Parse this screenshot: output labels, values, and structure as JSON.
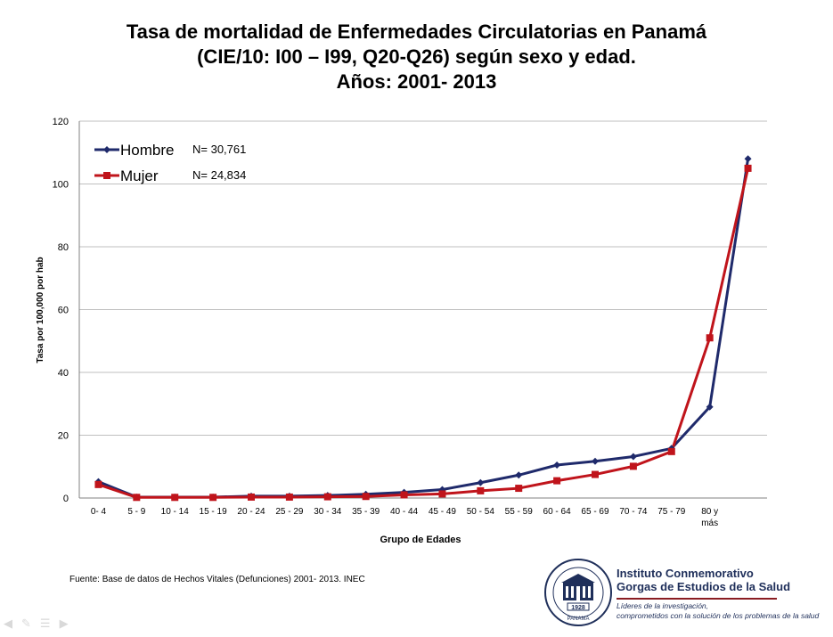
{
  "title": {
    "line1": "Tasa de mortalidad de Enfermedades Circulatorias en Panamá",
    "line2": "(CIE/10: I00 – I99, Q20-Q26) según sexo y edad.",
    "line3": "Años: 2001- 2013"
  },
  "chart_data": {
    "type": "line",
    "xlabel": "Grupo de Edades",
    "ylabel": "Tasa por 100,000 por hab",
    "ylim": [
      0,
      120
    ],
    "yticks": [
      0,
      20,
      40,
      60,
      80,
      100,
      120
    ],
    "grid": true,
    "legend_position": "top-left",
    "categories": [
      "0- 4",
      "5 - 9",
      "10 - 14",
      "15 - 19",
      "20 - 24",
      "25 - 29",
      "30 - 34",
      "35 - 39",
      "40 - 44",
      "45 - 49",
      "50 - 54",
      "55 - 59",
      "60 - 64",
      "65 - 69",
      "70 - 74",
      "75 - 79",
      "80 y más",
      ""
    ],
    "series": [
      {
        "name": "Hombre",
        "n_label": "N= 30,761",
        "color": "#1f2a6b",
        "marker": "diamond",
        "values": [
          5.2,
          0.3,
          0.3,
          0.3,
          0.6,
          0.6,
          0.8,
          1.2,
          1.8,
          2.7,
          4.9,
          7.3,
          10.5,
          11.7,
          13.2,
          15.8,
          29,
          108
        ]
      },
      {
        "name": "Mujer",
        "n_label": "N= 24,834",
        "color": "#c0141b",
        "marker": "square",
        "values": [
          4.3,
          0.2,
          0.2,
          0.2,
          0.3,
          0.3,
          0.4,
          0.5,
          1.0,
          1.3,
          2.3,
          3.1,
          5.5,
          7.5,
          10.1,
          14.8,
          51,
          105
        ]
      }
    ]
  },
  "source": "Fuente: Base de datos de Hechos Vitales (Defunciones) 2001- 2013. INEC",
  "institute": {
    "name_line1": "Instituto Conmemorativo",
    "name_line2": "Gorgas de Estudios de la Salud",
    "motto_line1": "Líderes de la investigación,",
    "motto_line2": "comprometidos con la solución de los problemas de la salud",
    "seal_text": "INSTITUTO CONMEMORATIVO GORGAS DE ESTUDIOS DE LA SALUD",
    "seal_year": "1928",
    "seal_country": "PANAMA"
  }
}
